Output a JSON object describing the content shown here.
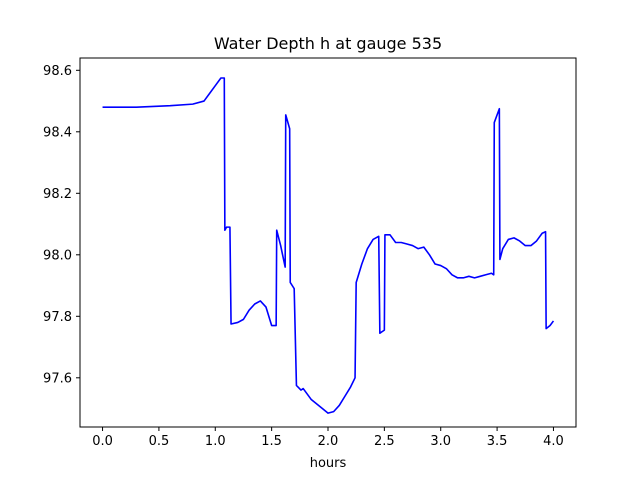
{
  "chart_data": {
    "type": "line",
    "title": "Water Depth h at gauge 535",
    "xlabel": "hours",
    "ylabel": "",
    "xlim": [
      -0.2,
      4.2
    ],
    "ylim": [
      97.44,
      98.64
    ],
    "xticks": [
      0.0,
      0.5,
      1.0,
      1.5,
      2.0,
      2.5,
      3.0,
      3.5,
      4.0
    ],
    "xtick_labels": [
      "0.0",
      "0.5",
      "1.0",
      "1.5",
      "2.0",
      "2.5",
      "3.0",
      "3.5",
      "4.0"
    ],
    "yticks": [
      97.6,
      97.8,
      98.0,
      98.2,
      98.4,
      98.6
    ],
    "ytick_labels": [
      "97.6",
      "97.8",
      "98.0",
      "98.2",
      "98.4",
      "98.6"
    ],
    "grid": false,
    "series": [
      {
        "color": "#0000ff",
        "x": [
          0.0,
          0.3,
          0.6,
          0.8,
          0.9,
          0.95,
          1.0,
          1.05,
          1.08,
          1.085,
          1.1,
          1.13,
          1.14,
          1.2,
          1.25,
          1.3,
          1.35,
          1.4,
          1.45,
          1.5,
          1.54,
          1.545,
          1.58,
          1.62,
          1.625,
          1.66,
          1.665,
          1.7,
          1.72,
          1.76,
          1.78,
          1.85,
          1.95,
          2.0,
          2.05,
          2.1,
          2.15,
          2.2,
          2.24,
          2.25,
          2.3,
          2.35,
          2.4,
          2.45,
          2.46,
          2.5,
          2.505,
          2.55,
          2.6,
          2.65,
          2.7,
          2.75,
          2.8,
          2.85,
          2.9,
          2.95,
          3.0,
          3.05,
          3.1,
          3.15,
          3.2,
          3.25,
          3.3,
          3.35,
          3.4,
          3.45,
          3.47,
          3.475,
          3.52,
          3.525,
          3.55,
          3.6,
          3.65,
          3.7,
          3.75,
          3.8,
          3.85,
          3.9,
          3.93,
          3.935,
          3.97,
          4.0
        ],
        "y": [
          98.48,
          98.48,
          98.485,
          98.49,
          98.5,
          98.525,
          98.55,
          98.575,
          98.575,
          98.08,
          98.09,
          98.09,
          97.775,
          97.78,
          97.79,
          97.82,
          97.84,
          97.85,
          97.83,
          97.77,
          97.77,
          98.08,
          98.03,
          97.96,
          98.455,
          98.41,
          97.91,
          97.89,
          97.575,
          97.56,
          97.565,
          97.53,
          97.5,
          97.485,
          97.49,
          97.51,
          97.54,
          97.57,
          97.6,
          97.91,
          97.97,
          98.02,
          98.05,
          98.06,
          97.745,
          97.755,
          98.065,
          98.065,
          98.04,
          98.04,
          98.035,
          98.03,
          98.02,
          98.025,
          98.0,
          97.97,
          97.965,
          97.955,
          97.935,
          97.925,
          97.925,
          97.93,
          97.925,
          97.93,
          97.935,
          97.94,
          97.935,
          98.43,
          98.475,
          97.985,
          98.02,
          98.05,
          98.055,
          98.045,
          98.03,
          98.03,
          98.045,
          98.07,
          98.075,
          97.76,
          97.77,
          97.785
        ]
      }
    ]
  }
}
